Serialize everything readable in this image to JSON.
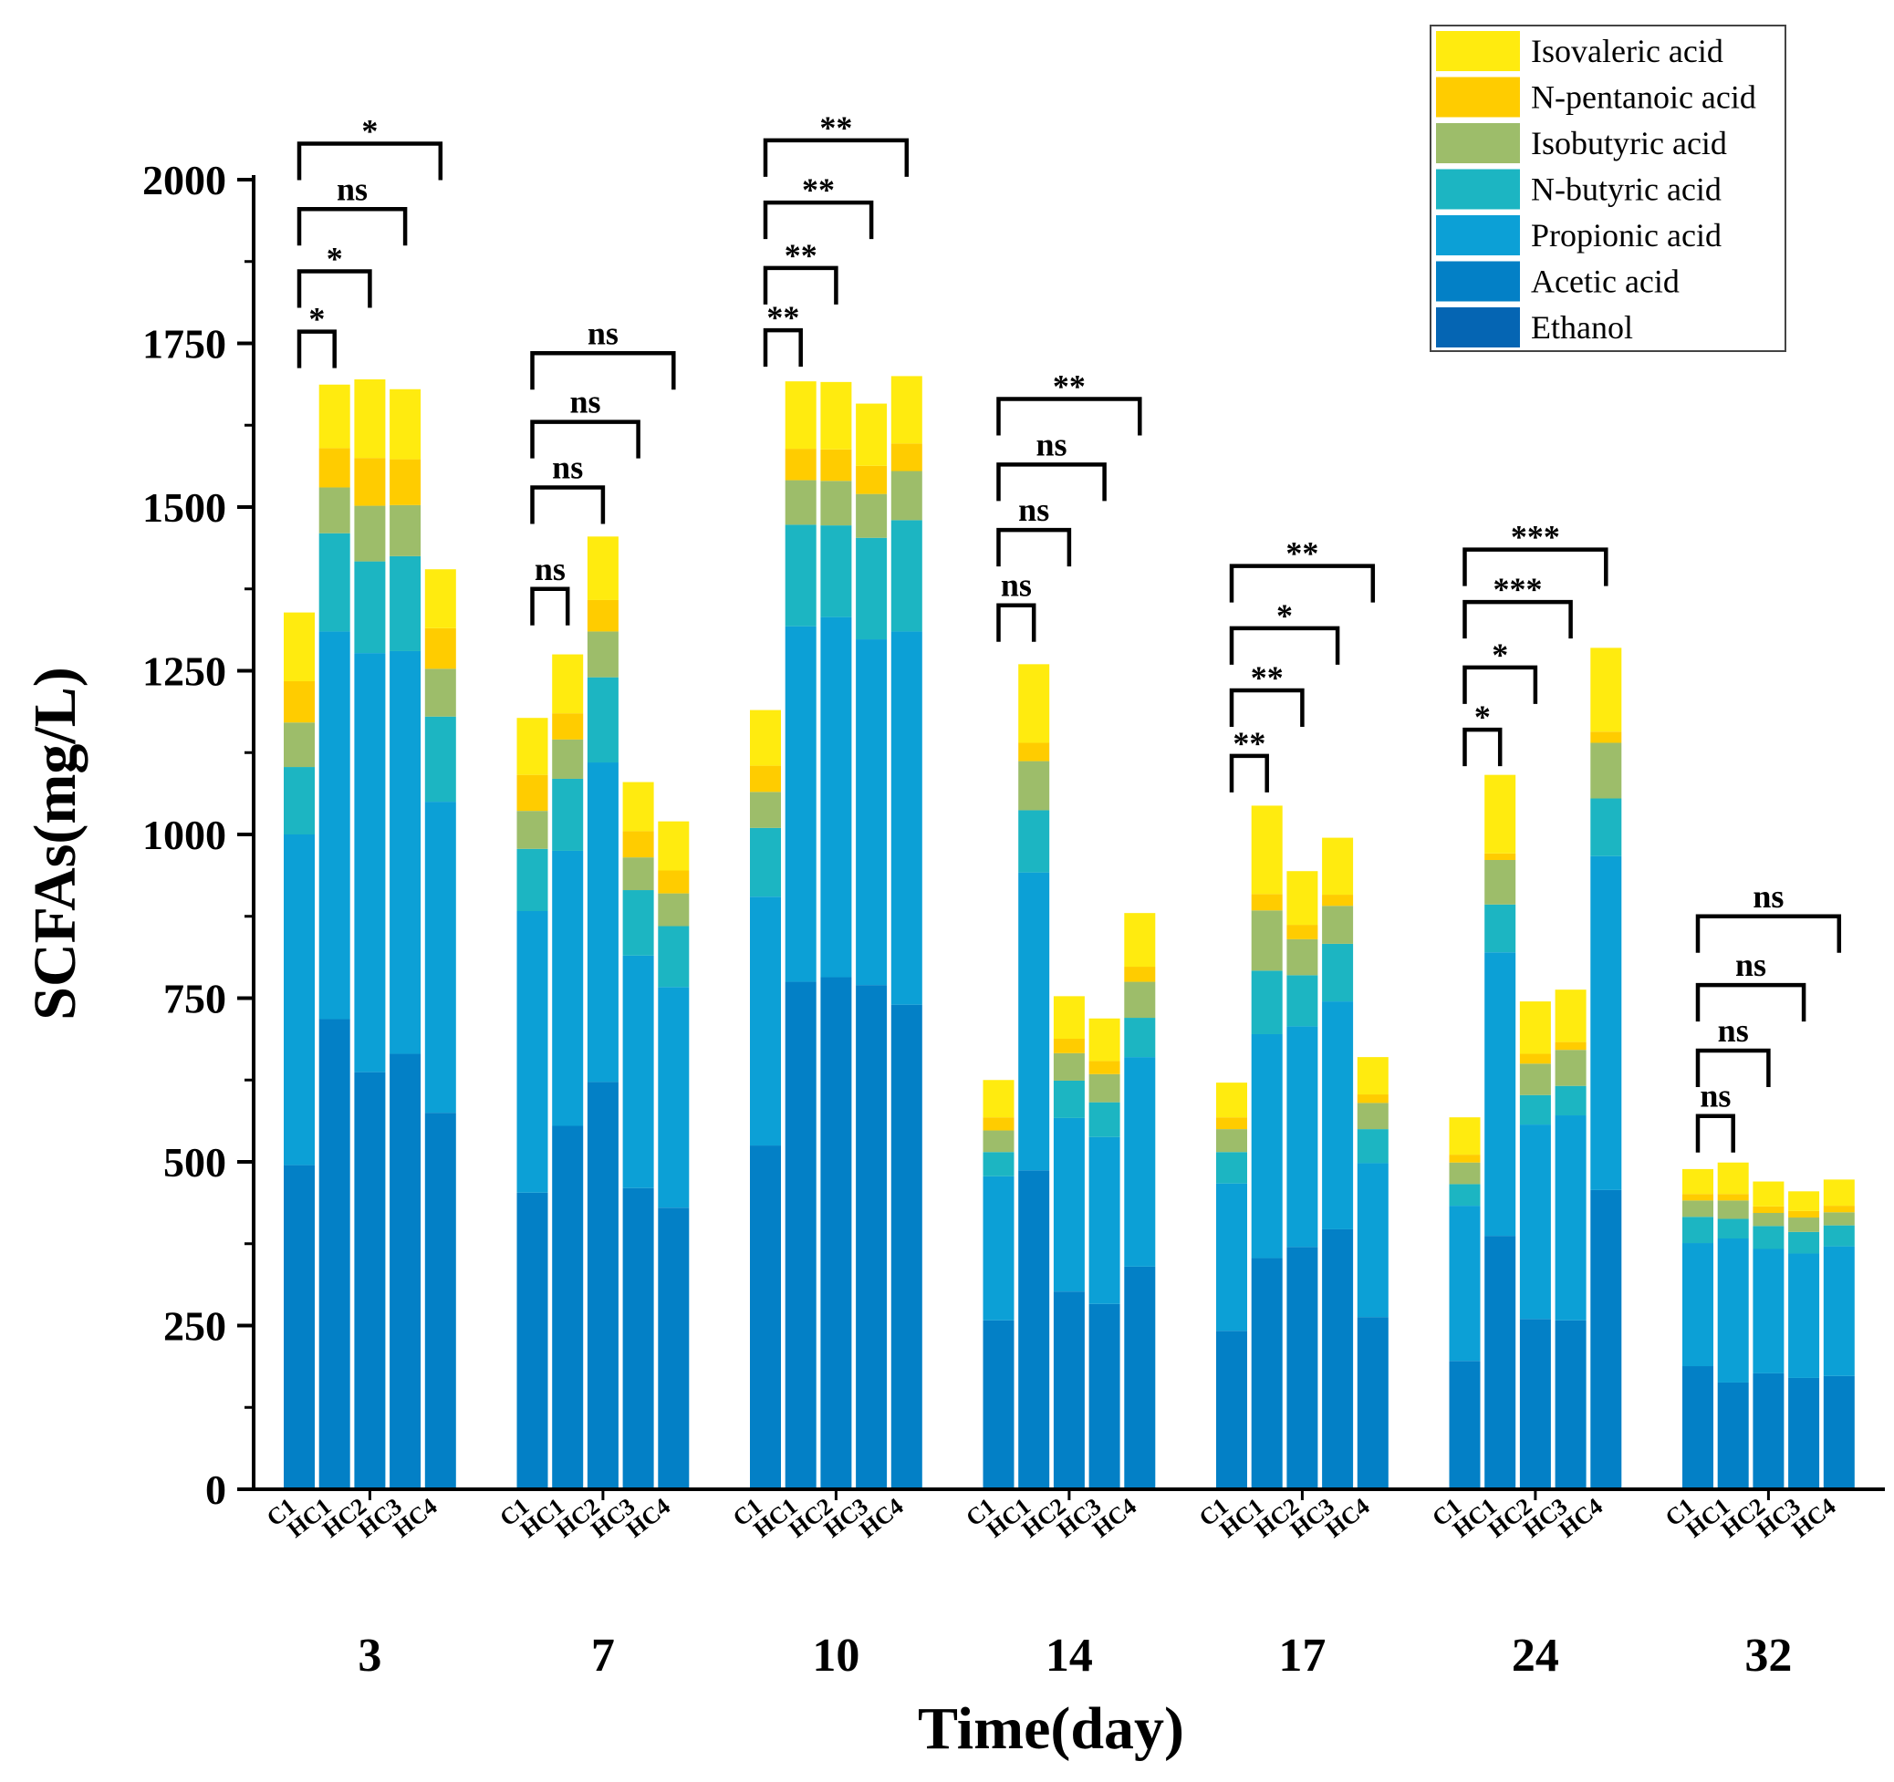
{
  "chart_data": {
    "type": "bar",
    "stacked": true,
    "xlabel": "Time(day)",
    "ylabel": "SCFAs(mg/L)",
    "ylim": [
      0,
      2000
    ],
    "yticks": [
      0,
      250,
      500,
      750,
      1000,
      1250,
      1500,
      1750,
      2000
    ],
    "groups": [
      "3",
      "7",
      "10",
      "14",
      "17",
      "24",
      "32"
    ],
    "subcategories": [
      "C1",
      "HC1",
      "HC2",
      "HC3",
      "HC4"
    ],
    "series_order_bottom_to_top": [
      "Ethanol",
      "Acetic acid",
      "Propionic acid",
      "N-butyric acid",
      "Isobutyric acid",
      "N-pentanoic acid",
      "Isovaleric acid"
    ],
    "legend": {
      "placement": "top-right",
      "entries": [
        {
          "name": "Isovaleric acid",
          "color": "#FFEB0F"
        },
        {
          "name": "N-pentanoic acid",
          "color": "#FFCC00"
        },
        {
          "name": "Isobutyric acid",
          "color": "#9DBD6A"
        },
        {
          "name": "N-butyric acid",
          "color": "#1CB5C2"
        },
        {
          "name": "Propionic acid",
          "color": "#0CA0D6"
        },
        {
          "name": "Acetic acid",
          "color": "#0380C6"
        },
        {
          "name": "Ethanol",
          "color": "#0565B3"
        }
      ]
    },
    "series": [
      {
        "name": "Ethanol",
        "color": "#0565B3",
        "values": [
          [
            0,
            0,
            0,
            0,
            0
          ],
          [
            0,
            0,
            0,
            0,
            0
          ],
          [
            0,
            0,
            0,
            0,
            0
          ],
          [
            0,
            0,
            0,
            0,
            0
          ],
          [
            0,
            0,
            0,
            0,
            0
          ],
          [
            0,
            0,
            0,
            0,
            0
          ],
          [
            0,
            0,
            0,
            0,
            0
          ]
        ]
      },
      {
        "name": "Acetic acid",
        "color": "#0380C6",
        "values": [
          [
            495,
            718,
            637,
            665,
            575
          ],
          [
            453,
            555,
            622,
            460,
            430
          ],
          [
            525,
            775,
            782,
            770,
            740
          ],
          [
            258,
            487,
            302,
            283,
            340
          ],
          [
            242,
            353,
            370,
            397,
            263
          ],
          [
            196,
            387,
            260,
            258,
            457
          ],
          [
            188,
            163,
            177,
            170,
            173
          ]
        ]
      },
      {
        "name": "Propionic acid",
        "color": "#0CA0D6",
        "values": [
          [
            505,
            592,
            640,
            615,
            475
          ],
          [
            430,
            420,
            488,
            355,
            337
          ],
          [
            380,
            543,
            550,
            528,
            570
          ],
          [
            220,
            455,
            265,
            255,
            320
          ],
          [
            225,
            342,
            337,
            348,
            235
          ],
          [
            237,
            433,
            297,
            313,
            510
          ],
          [
            188,
            220,
            190,
            190,
            198
          ]
        ]
      },
      {
        "name": "N-butyric acid",
        "color": "#1CB5C2",
        "values": [
          [
            103,
            150,
            140,
            145,
            130
          ],
          [
            95,
            110,
            130,
            100,
            93
          ],
          [
            105,
            155,
            140,
            155,
            170
          ],
          [
            37,
            95,
            57,
            53,
            60
          ],
          [
            48,
            97,
            78,
            88,
            52
          ],
          [
            33,
            73,
            45,
            45,
            88
          ],
          [
            40,
            30,
            35,
            33,
            32
          ]
        ]
      },
      {
        "name": "Isobutyric acid",
        "color": "#9DBD6A",
        "values": [
          [
            68,
            70,
            85,
            78,
            73
          ],
          [
            58,
            60,
            70,
            50,
            50
          ],
          [
            55,
            68,
            68,
            67,
            75
          ],
          [
            33,
            75,
            42,
            43,
            55
          ],
          [
            35,
            92,
            55,
            58,
            40
          ],
          [
            33,
            68,
            48,
            55,
            85
          ],
          [
            25,
            28,
            20,
            22,
            20
          ]
        ]
      },
      {
        "name": "N-pentanoic acid",
        "color": "#FFCC00",
        "values": [
          [
            63,
            60,
            73,
            70,
            62
          ],
          [
            55,
            40,
            48,
            40,
            35
          ],
          [
            40,
            48,
            48,
            43,
            42
          ],
          [
            20,
            28,
            22,
            20,
            23
          ],
          [
            18,
            25,
            22,
            17,
            13
          ],
          [
            12,
            10,
            15,
            12,
            17
          ],
          [
            10,
            10,
            10,
            10,
            10
          ]
        ]
      },
      {
        "name": "Isovaleric acid",
        "color": "#FFEB0F",
        "values": [
          [
            105,
            97,
            120,
            107,
            90
          ],
          [
            87,
            90,
            97,
            75,
            75
          ],
          [
            85,
            103,
            103,
            95,
            103
          ],
          [
            57,
            120,
            65,
            65,
            82
          ],
          [
            53,
            135,
            82,
            87,
            57
          ],
          [
            57,
            120,
            80,
            80,
            128
          ],
          [
            38,
            48,
            38,
            30,
            40
          ]
        ]
      }
    ],
    "significance": [
      {
        "group": "3",
        "from": "C1",
        "to": "HC1",
        "y": 1768,
        "label": "*"
      },
      {
        "group": "3",
        "from": "C1",
        "to": "HC2",
        "y": 1860,
        "label": "*"
      },
      {
        "group": "3",
        "from": "C1",
        "to": "HC3",
        "y": 1955,
        "label": "ns"
      },
      {
        "group": "3",
        "from": "C1",
        "to": "HC4",
        "y": 2055,
        "label": "*"
      },
      {
        "group": "7",
        "from": "C1",
        "to": "HC1",
        "y": 1375,
        "label": "ns"
      },
      {
        "group": "7",
        "from": "C1",
        "to": "HC2",
        "y": 1530,
        "label": "ns"
      },
      {
        "group": "7",
        "from": "C1",
        "to": "HC3",
        "y": 1630,
        "label": "ns"
      },
      {
        "group": "7",
        "from": "C1",
        "to": "HC4",
        "y": 1735,
        "label": "ns"
      },
      {
        "group": "10",
        "from": "C1",
        "to": "HC1",
        "y": 1770,
        "label": "**"
      },
      {
        "group": "10",
        "from": "C1",
        "to": "HC2",
        "y": 1865,
        "label": "**"
      },
      {
        "group": "10",
        "from": "C1",
        "to": "HC3",
        "y": 1965,
        "label": "**"
      },
      {
        "group": "10",
        "from": "C1",
        "to": "HC4",
        "y": 2060,
        "label": "**"
      },
      {
        "group": "14",
        "from": "C1",
        "to": "HC1",
        "y": 1350,
        "label": "ns"
      },
      {
        "group": "14",
        "from": "C1",
        "to": "HC2",
        "y": 1465,
        "label": "ns"
      },
      {
        "group": "14",
        "from": "C1",
        "to": "HC3",
        "y": 1565,
        "label": "ns"
      },
      {
        "group": "14",
        "from": "C1",
        "to": "HC4",
        "y": 1665,
        "label": "**"
      },
      {
        "group": "17",
        "from": "C1",
        "to": "HC1",
        "y": 1120,
        "label": "**"
      },
      {
        "group": "17",
        "from": "C1",
        "to": "HC2",
        "y": 1220,
        "label": "**"
      },
      {
        "group": "17",
        "from": "C1",
        "to": "HC3",
        "y": 1315,
        "label": "*"
      },
      {
        "group": "17",
        "from": "C1",
        "to": "HC4",
        "y": 1410,
        "label": "**"
      },
      {
        "group": "24",
        "from": "C1",
        "to": "HC1",
        "y": 1160,
        "label": "*"
      },
      {
        "group": "24",
        "from": "C1",
        "to": "HC2",
        "y": 1255,
        "label": "*"
      },
      {
        "group": "24",
        "from": "C1",
        "to": "HC3",
        "y": 1355,
        "label": "***"
      },
      {
        "group": "24",
        "from": "C1",
        "to": "HC4",
        "y": 1435,
        "label": "***"
      },
      {
        "group": "32",
        "from": "C1",
        "to": "HC1",
        "y": 570,
        "label": "ns"
      },
      {
        "group": "32",
        "from": "C1",
        "to": "HC2",
        "y": 670,
        "label": "ns"
      },
      {
        "group": "32",
        "from": "C1",
        "to": "HC3",
        "y": 770,
        "label": "ns"
      },
      {
        "group": "32",
        "from": "C1",
        "to": "HC4",
        "y": 875,
        "label": "ns"
      }
    ]
  }
}
